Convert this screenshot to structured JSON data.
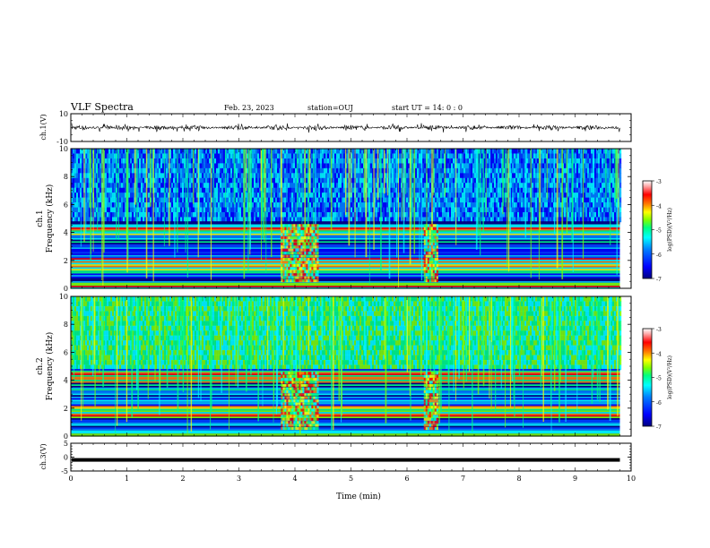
{
  "header": {
    "title": "VLF Spectra",
    "date": "Feb. 23, 2023",
    "station": "station=OUJ",
    "start": "start  UT =   14: 0  : 0"
  },
  "colorbar": {
    "label": "log(PSD)(V²/Hz)",
    "ticks": [
      "-3",
      "-4",
      "-5",
      "-6",
      "-7"
    ],
    "colors": [
      "#000080",
      "#0000ff",
      "#0080ff",
      "#00ffff",
      "#00ff80",
      "#80ff00",
      "#ffff00",
      "#ff8000",
      "#ff0000",
      "#800000",
      "#ffffff"
    ]
  },
  "chart_data": [
    {
      "type": "line",
      "ylabel": "ch.1(V)",
      "ylim": [
        -10,
        10
      ],
      "yticks": [
        "10",
        "-10"
      ],
      "xlim": [
        0,
        10
      ],
      "description": "waveform amplitude, roughly +/-2 V with bursts"
    },
    {
      "type": "heatmap",
      "ylabel": "ch.1\nFrequency (kHz)",
      "ylabel_top": "ch.1",
      "ylabel_bottom": "Frequency (kHz)",
      "ylim": [
        0,
        10
      ],
      "yticks": [
        "0",
        "2",
        "4",
        "6",
        "8",
        "10"
      ],
      "xlim": [
        0,
        10
      ],
      "zlim": [
        -7,
        -3
      ],
      "zlabel": "log(PSD)(V²/Hz)",
      "data_end_min": 9.8
    },
    {
      "type": "heatmap",
      "ylabel": "ch.2\nFrequency (kHz)",
      "ylabel_top": "ch.2",
      "ylabel_bottom": "Frequency (kHz)",
      "ylim": [
        0,
        10
      ],
      "yticks": [
        "0",
        "2",
        "4",
        "6",
        "8",
        "10"
      ],
      "xlim": [
        0,
        10
      ],
      "zlim": [
        -7,
        -3
      ],
      "zlabel": "log(PSD)(V²/Hz)",
      "data_end_min": 9.8
    },
    {
      "type": "line",
      "ylabel": "ch.3(V)",
      "ylim": [
        -5,
        5
      ],
      "yticks": [
        "5",
        "0",
        "-5"
      ],
      "xlim": [
        0,
        10
      ],
      "xticks": [
        "0",
        "1",
        "2",
        "3",
        "4",
        "5",
        "6",
        "7",
        "8",
        "9",
        "10"
      ],
      "xlabel": "Time (min)",
      "description": "flat line near -1 V"
    }
  ]
}
